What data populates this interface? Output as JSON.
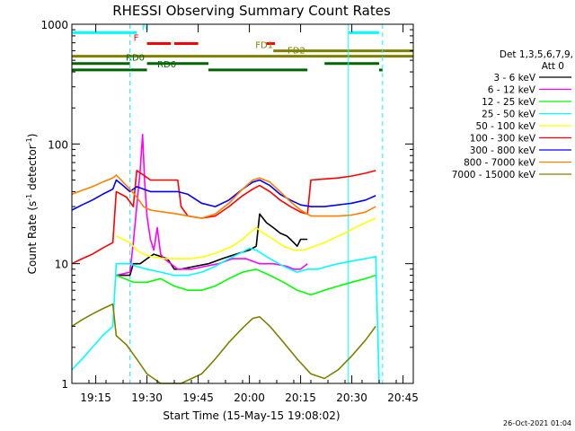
{
  "chart_data": {
    "type": "line",
    "title": "RHESSI Observing Summary Count Rates",
    "xlabel": "Start Time (15-May-15 19:08:02)",
    "ylabel_main": "Count Rate (s",
    "ylabel_sup1": "-1",
    "ylabel_mid": " detector",
    "ylabel_sup2": "-1",
    "ylabel_end": ")",
    "y_scale": "log",
    "ylim": [
      1,
      1000
    ],
    "xlim": [
      0,
      100
    ],
    "x_unit": "minutes since 19:08",
    "x_ticks": [
      {
        "label": "19:15",
        "x": 7
      },
      {
        "label": "19:30",
        "x": 22
      },
      {
        "label": "19:45",
        "x": 37
      },
      {
        "label": "20:00",
        "x": 52
      },
      {
        "label": "20:15",
        "x": 67
      },
      {
        "label": "20:30",
        "x": 82
      },
      {
        "label": "20:45",
        "x": 97
      }
    ],
    "y_ticks": [
      {
        "label": "1",
        "y": 1
      },
      {
        "label": "10",
        "y": 10
      },
      {
        "label": "100",
        "y": 100
      },
      {
        "label": "1000",
        "y": 1000
      }
    ],
    "grid": false,
    "legend_position": "right",
    "legend_header": [
      "Det 1,3,5,6,7,9,",
      "Att 0"
    ],
    "series": [
      {
        "name": "3 - 6 keV",
        "color": "#000000",
        "points": [
          [
            13,
            8
          ],
          [
            17,
            8
          ],
          [
            18,
            10
          ],
          [
            20,
            10
          ],
          [
            22,
            11
          ],
          [
            24,
            12
          ],
          [
            28,
            11
          ],
          [
            30,
            9
          ],
          [
            32,
            9
          ],
          [
            36,
            9.5
          ],
          [
            40,
            10
          ],
          [
            44,
            11
          ],
          [
            48,
            12
          ],
          [
            52,
            13
          ],
          [
            54,
            14
          ],
          [
            55,
            26
          ],
          [
            57,
            22
          ],
          [
            59,
            20
          ],
          [
            61,
            18
          ],
          [
            63,
            17
          ],
          [
            64,
            16
          ],
          [
            65,
            15
          ],
          [
            66,
            14
          ],
          [
            67,
            16
          ],
          [
            69,
            16
          ]
        ]
      },
      {
        "name": "6 - 12 keV",
        "color": "#ff00ff",
        "points": [
          [
            13,
            8
          ],
          [
            17,
            8.5
          ],
          [
            18,
            15
          ],
          [
            19,
            30
          ],
          [
            20,
            60
          ],
          [
            20.7,
            120
          ],
          [
            21.3,
            50
          ],
          [
            22,
            25
          ],
          [
            23,
            16
          ],
          [
            24,
            13
          ],
          [
            25,
            20
          ],
          [
            26,
            12
          ],
          [
            27,
            11
          ],
          [
            29,
            10
          ],
          [
            31,
            9
          ],
          [
            35,
            9
          ],
          [
            39,
            9.5
          ],
          [
            43,
            10
          ],
          [
            47,
            11
          ],
          [
            51,
            11
          ],
          [
            55,
            10
          ],
          [
            59,
            10
          ],
          [
            63,
            9.5
          ],
          [
            65,
            9
          ],
          [
            67,
            9
          ],
          [
            69,
            10
          ]
        ]
      },
      {
        "name": "12 - 25 keV",
        "color": "#00ff00",
        "points": [
          [
            13,
            8
          ],
          [
            18,
            7
          ],
          [
            22,
            7
          ],
          [
            26,
            7.5
          ],
          [
            30,
            6.5
          ],
          [
            34,
            6
          ],
          [
            38,
            6
          ],
          [
            42,
            6.5
          ],
          [
            46,
            7.5
          ],
          [
            50,
            8.5
          ],
          [
            54,
            9
          ],
          [
            58,
            8
          ],
          [
            62,
            7
          ],
          [
            66,
            6
          ],
          [
            70,
            5.5
          ],
          [
            74,
            6
          ],
          [
            78,
            6.5
          ],
          [
            82,
            7
          ],
          [
            86,
            7.5
          ],
          [
            89,
            8
          ]
        ]
      },
      {
        "name": "25 - 50 keV",
        "color": "#00ffff",
        "points": [
          [
            0,
            1.3
          ],
          [
            3,
            1.6
          ],
          [
            6,
            2
          ],
          [
            9,
            2.5
          ],
          [
            12,
            3
          ],
          [
            13,
            10
          ],
          [
            17,
            10
          ],
          [
            19,
            9.5
          ],
          [
            22,
            9
          ],
          [
            26,
            8.5
          ],
          [
            30,
            8
          ],
          [
            34,
            8
          ],
          [
            38,
            8.5
          ],
          [
            42,
            9.5
          ],
          [
            46,
            11
          ],
          [
            50,
            12.5
          ],
          [
            52,
            13.5
          ],
          [
            54,
            13
          ],
          [
            58,
            11
          ],
          [
            62,
            9.5
          ],
          [
            66,
            8.5
          ],
          [
            69,
            9
          ],
          [
            72,
            9
          ],
          [
            75,
            9.5
          ],
          [
            78,
            10
          ],
          [
            82,
            10.5
          ],
          [
            86,
            11
          ],
          [
            89,
            11.5
          ],
          [
            90,
            1
          ]
        ]
      },
      {
        "name": "50 - 100 keV",
        "color": "#ffff00",
        "points": [
          [
            13,
            17
          ],
          [
            15,
            16
          ],
          [
            17,
            15
          ],
          [
            19,
            13
          ],
          [
            21,
            12
          ],
          [
            23,
            11.5
          ],
          [
            27,
            11
          ],
          [
            31,
            11
          ],
          [
            35,
            11
          ],
          [
            39,
            11.5
          ],
          [
            43,
            12.5
          ],
          [
            47,
            14
          ],
          [
            50,
            16
          ],
          [
            52,
            18
          ],
          [
            54,
            20
          ],
          [
            56,
            18
          ],
          [
            59,
            16
          ],
          [
            62,
            14
          ],
          [
            65,
            13
          ],
          [
            68,
            13
          ],
          [
            71,
            14
          ],
          [
            74,
            15
          ],
          [
            77,
            16.5
          ],
          [
            80,
            18
          ],
          [
            83,
            20
          ],
          [
            86,
            22
          ],
          [
            89,
            24
          ]
        ]
      },
      {
        "name": "100 - 300 keV",
        "color": "#ff0000",
        "points": [
          [
            0,
            10
          ],
          [
            3,
            11
          ],
          [
            6,
            12
          ],
          [
            9,
            13.5
          ],
          [
            12,
            15
          ],
          [
            13,
            40
          ],
          [
            16,
            36
          ],
          [
            18,
            30
          ],
          [
            19,
            60
          ],
          [
            21,
            55
          ],
          [
            23,
            50
          ],
          [
            27,
            50
          ],
          [
            31,
            50
          ],
          [
            32,
            30
          ],
          [
            34,
            25
          ],
          [
            38,
            24
          ],
          [
            42,
            25
          ],
          [
            46,
            30
          ],
          [
            50,
            37
          ],
          [
            53,
            42
          ],
          [
            55,
            45
          ],
          [
            58,
            40
          ],
          [
            61,
            34
          ],
          [
            64,
            30
          ],
          [
            67,
            27
          ],
          [
            69,
            26
          ],
          [
            70,
            50
          ],
          [
            74,
            51
          ],
          [
            78,
            52
          ],
          [
            82,
            54
          ],
          [
            86,
            57
          ],
          [
            89,
            60
          ]
        ]
      },
      {
        "name": "300 - 800 keV",
        "color": "#0000ff",
        "points": [
          [
            0,
            28
          ],
          [
            3,
            31
          ],
          [
            6,
            34
          ],
          [
            9,
            38
          ],
          [
            12,
            42
          ],
          [
            13,
            50
          ],
          [
            15,
            45
          ],
          [
            17,
            40
          ],
          [
            19,
            44
          ],
          [
            21,
            42
          ],
          [
            23,
            40
          ],
          [
            27,
            40
          ],
          [
            31,
            40
          ],
          [
            34,
            38
          ],
          [
            38,
            32
          ],
          [
            42,
            30
          ],
          [
            46,
            34
          ],
          [
            50,
            42
          ],
          [
            53,
            48
          ],
          [
            55,
            50
          ],
          [
            58,
            45
          ],
          [
            61,
            38
          ],
          [
            64,
            34
          ],
          [
            67,
            31
          ],
          [
            70,
            30
          ],
          [
            74,
            30
          ],
          [
            78,
            31
          ],
          [
            82,
            32
          ],
          [
            86,
            34
          ],
          [
            89,
            37
          ]
        ]
      },
      {
        "name": "800 - 7000 keV",
        "color": "#ff8000",
        "points": [
          [
            0,
            38
          ],
          [
            3,
            41
          ],
          [
            6,
            44
          ],
          [
            9,
            48
          ],
          [
            12,
            52
          ],
          [
            13,
            55
          ],
          [
            15,
            48
          ],
          [
            17,
            42
          ],
          [
            19,
            36
          ],
          [
            21,
            30
          ],
          [
            23,
            28
          ],
          [
            27,
            27
          ],
          [
            31,
            26
          ],
          [
            34,
            25
          ],
          [
            38,
            24
          ],
          [
            42,
            26
          ],
          [
            46,
            32
          ],
          [
            50,
            42
          ],
          [
            53,
            50
          ],
          [
            55,
            52
          ],
          [
            58,
            48
          ],
          [
            61,
            40
          ],
          [
            64,
            33
          ],
          [
            67,
            28
          ],
          [
            70,
            25
          ],
          [
            74,
            25
          ],
          [
            78,
            25
          ],
          [
            82,
            25.5
          ],
          [
            86,
            27
          ],
          [
            89,
            30
          ]
        ]
      },
      {
        "name": "7000 - 15000 keV",
        "color": "#808000",
        "points": [
          [
            0,
            3
          ],
          [
            3,
            3.4
          ],
          [
            6,
            3.8
          ],
          [
            9,
            4.2
          ],
          [
            12,
            4.6
          ],
          [
            13,
            2.5
          ],
          [
            16,
            2.1
          ],
          [
            19,
            1.6
          ],
          [
            22,
            1.2
          ],
          [
            26,
            1
          ],
          [
            32,
            1
          ],
          [
            38,
            1.2
          ],
          [
            42,
            1.6
          ],
          [
            46,
            2.2
          ],
          [
            50,
            2.9
          ],
          [
            53,
            3.5
          ],
          [
            55,
            3.6
          ],
          [
            58,
            3
          ],
          [
            62,
            2.2
          ],
          [
            66,
            1.6
          ],
          [
            70,
            1.2
          ],
          [
            74,
            1.1
          ],
          [
            78,
            1.3
          ],
          [
            82,
            1.7
          ],
          [
            86,
            2.3
          ],
          [
            89,
            3
          ]
        ]
      }
    ],
    "flag_segments": [
      {
        "label": "N",
        "color": "#00ffff",
        "y": 850,
        "x": [
          [
            0,
            19
          ],
          [
            81,
            90
          ]
        ]
      },
      {
        "label": "F",
        "color": "#ff0000",
        "y": 690,
        "x": [
          [
            22,
            29
          ],
          [
            30,
            37
          ],
          [
            57,
            59.5
          ]
        ]
      },
      {
        "label": "FD1",
        "color": "#808000",
        "y": 600,
        "x": [
          [
            59,
            100
          ]
        ]
      },
      {
        "label": "FD2",
        "color": "#808000",
        "y": 540,
        "x": [
          [
            0,
            100
          ]
        ]
      },
      {
        "label": "RD0",
        "color": "#006400",
        "y": 470,
        "x": [
          [
            0,
            17
          ],
          [
            22,
            40
          ],
          [
            74,
            90
          ]
        ]
      },
      {
        "label": "RD6",
        "color": "#006400",
        "y": 415,
        "x": [
          [
            0,
            22
          ],
          [
            40,
            69
          ],
          [
            90,
            91
          ]
        ]
      }
    ],
    "event_lines": [
      {
        "x": 0,
        "style": "solid"
      },
      {
        "x": 17,
        "style": "dashed"
      },
      {
        "x": 81,
        "style": "solid"
      },
      {
        "x": 91,
        "style": "dashed"
      }
    ],
    "stamp": "26-Oct-2021 01:04"
  }
}
